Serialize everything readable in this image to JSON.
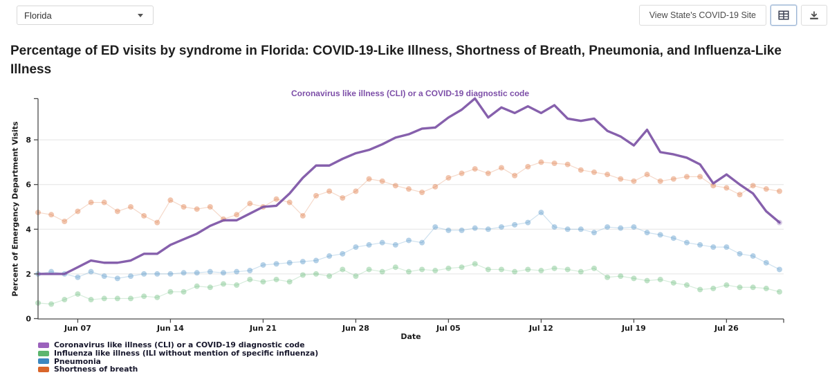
{
  "toolbar": {
    "state_selector_value": "Florida",
    "view_site_button": "View State's COVID-19 Site"
  },
  "title": "Percentage of ED visits by syndrome in Florida: COVID-19-Like Illness, Shortness of Breath, Pneumonia, and Influenza-Like Illness",
  "chart_data": {
    "type": "line+scatter",
    "annotation": "Coronavirus like illness (CLI) or a COVID-19 diagnostic code",
    "annotation_color": "#7d4fa8",
    "xlabel": "Date",
    "ylabel": "Percent of Emergency Department Visits",
    "grid": "horizontal",
    "legend_position": "bottom-left",
    "ylim": [
      0,
      10
    ],
    "y_ticks": [
      0,
      2,
      4,
      6,
      8
    ],
    "x_ticks": [
      "Jun 07",
      "Jun 14",
      "Jun 21",
      "Jun 28",
      "Jul 05",
      "Jul 12",
      "Jul 19",
      "Jul 26"
    ],
    "x_tick_day_indices": [
      3,
      10,
      17,
      24,
      31,
      38,
      45,
      52
    ],
    "dates": [
      "Jun 04",
      "Jun 05",
      "Jun 06",
      "Jun 07",
      "Jun 08",
      "Jun 09",
      "Jun 10",
      "Jun 11",
      "Jun 12",
      "Jun 13",
      "Jun 14",
      "Jun 15",
      "Jun 16",
      "Jun 17",
      "Jun 18",
      "Jun 19",
      "Jun 20",
      "Jun 21",
      "Jun 22",
      "Jun 23",
      "Jun 24",
      "Jun 25",
      "Jun 26",
      "Jun 27",
      "Jun 28",
      "Jun 29",
      "Jun 30",
      "Jul 01",
      "Jul 02",
      "Jul 03",
      "Jul 04",
      "Jul 05",
      "Jul 06",
      "Jul 07",
      "Jul 08",
      "Jul 09",
      "Jul 10",
      "Jul 11",
      "Jul 12",
      "Jul 13",
      "Jul 14",
      "Jul 15",
      "Jul 16",
      "Jul 17",
      "Jul 18",
      "Jul 19",
      "Jul 20",
      "Jul 21",
      "Jul 22",
      "Jul 23",
      "Jul 24",
      "Jul 25",
      "Jul 26",
      "Jul 27",
      "Jul 28",
      "Jul 29",
      "Jul 30"
    ],
    "series": [
      {
        "name": "Coronavirus like illness (CLI) or a COVID-19 diagnostic code",
        "style": "line",
        "color": "#7c53a5",
        "legend_color": "#9b62bc",
        "values": [
          2.0,
          2.0,
          2.0,
          2.3,
          2.6,
          2.5,
          2.5,
          2.6,
          2.9,
          2.9,
          3.3,
          3.55,
          3.8,
          4.15,
          4.4,
          4.4,
          4.7,
          5.0,
          5.05,
          5.6,
          6.3,
          6.85,
          6.85,
          7.15,
          7.4,
          7.55,
          7.8,
          8.1,
          8.25,
          8.5,
          8.55,
          9.0,
          9.35,
          9.85,
          9.0,
          9.45,
          9.2,
          9.5,
          9.2,
          9.55,
          8.95,
          8.85,
          8.95,
          8.4,
          8.15,
          7.75,
          8.45,
          7.45,
          7.35,
          7.2,
          6.9,
          6.05,
          6.45,
          6.0,
          5.6,
          4.8,
          4.3
        ]
      },
      {
        "name": "Influenza like illness (ILI without mention of specific influenza)",
        "style": "dots",
        "color": "#5cb56e",
        "legend_color": "#5cb56e",
        "values": [
          0.7,
          0.65,
          0.85,
          1.1,
          0.85,
          0.9,
          0.9,
          0.9,
          1.0,
          0.95,
          1.2,
          1.2,
          1.45,
          1.4,
          1.55,
          1.5,
          1.75,
          1.65,
          1.75,
          1.65,
          1.95,
          2.0,
          1.9,
          2.2,
          1.9,
          2.2,
          2.1,
          2.3,
          2.1,
          2.2,
          2.15,
          2.25,
          2.3,
          2.45,
          2.2,
          2.2,
          2.1,
          2.2,
          2.15,
          2.25,
          2.2,
          2.1,
          2.25,
          1.85,
          1.9,
          1.8,
          1.7,
          1.75,
          1.6,
          1.5,
          1.3,
          1.35,
          1.5,
          1.4,
          1.4,
          1.35,
          1.2
        ]
      },
      {
        "name": "Pneumonia",
        "style": "dots",
        "color": "#3c87c0",
        "legend_color": "#3c87c0",
        "values": [
          2.0,
          2.1,
          2.0,
          1.85,
          2.1,
          1.9,
          1.8,
          1.9,
          2.0,
          2.0,
          2.0,
          2.05,
          2.05,
          2.1,
          2.05,
          2.1,
          2.15,
          2.4,
          2.45,
          2.5,
          2.55,
          2.6,
          2.8,
          2.9,
          3.2,
          3.3,
          3.4,
          3.3,
          3.5,
          3.4,
          4.1,
          3.95,
          3.95,
          4.05,
          4.0,
          4.1,
          4.2,
          4.3,
          4.75,
          4.1,
          4.0,
          4.0,
          3.85,
          4.1,
          4.05,
          4.1,
          3.85,
          3.75,
          3.6,
          3.4,
          3.3,
          3.2,
          3.2,
          2.9,
          2.8,
          2.5,
          2.2
        ]
      },
      {
        "name": "Shortness of breath",
        "style": "dots",
        "color": "#d9662b",
        "legend_color": "#d9662b",
        "values": [
          4.75,
          4.65,
          4.35,
          4.8,
          5.2,
          5.2,
          4.8,
          5.0,
          4.6,
          4.3,
          5.3,
          5.0,
          4.9,
          5.0,
          4.45,
          4.65,
          5.15,
          5.0,
          5.35,
          5.2,
          4.6,
          5.5,
          5.7,
          5.4,
          5.7,
          6.25,
          6.15,
          5.95,
          5.8,
          5.65,
          5.9,
          6.3,
          6.5,
          6.7,
          6.5,
          6.75,
          6.4,
          6.8,
          7.0,
          6.95,
          6.9,
          6.65,
          6.55,
          6.45,
          6.25,
          6.15,
          6.45,
          6.15,
          6.25,
          6.35,
          6.35,
          5.95,
          5.85,
          5.55,
          5.95,
          5.8,
          5.7
        ]
      }
    ]
  }
}
